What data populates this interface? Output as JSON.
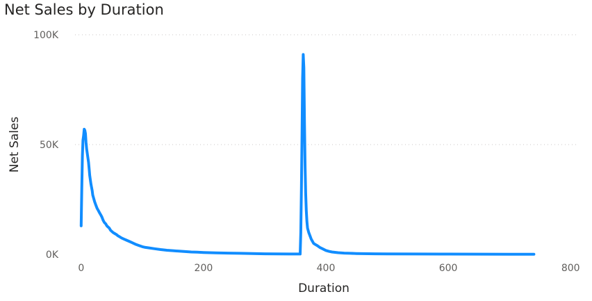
{
  "chart_data": {
    "type": "line",
    "title": "Net Sales by Duration",
    "xlabel": "Duration",
    "ylabel": "Net Sales",
    "xlim": [
      -10,
      810
    ],
    "ylim": [
      0,
      100000
    ],
    "x_ticks": [
      0,
      200,
      400,
      600,
      800
    ],
    "x_tick_labels": [
      "0",
      "200",
      "400",
      "600",
      "800"
    ],
    "y_ticks": [
      0,
      50000,
      100000
    ],
    "y_tick_labels": [
      "0K",
      "50K",
      "100K"
    ],
    "grid": true,
    "legend": "none",
    "series_color": "#118DFF",
    "series": [
      {
        "x": [
          0,
          1,
          2,
          3,
          4,
          5,
          6,
          7,
          8,
          9,
          10,
          11,
          12,
          13,
          14,
          15,
          16,
          17,
          18,
          19,
          20,
          22,
          24,
          26,
          28,
          30,
          32,
          34,
          36,
          38,
          40,
          42,
          44,
          46,
          48,
          50,
          52,
          55,
          58,
          60,
          63,
          66,
          70,
          74,
          78,
          82,
          86,
          90,
          95,
          100,
          105,
          110,
          120,
          130,
          140,
          150,
          160,
          170,
          180,
          190,
          200,
          220,
          240,
          260,
          280,
          300,
          320,
          340,
          358,
          359,
          360,
          361,
          362,
          363,
          364,
          365,
          366,
          367,
          368,
          369,
          370,
          372,
          374,
          376,
          378,
          380,
          383,
          386,
          390,
          395,
          400,
          405,
          410,
          420,
          430,
          440,
          450,
          460,
          480,
          500,
          550,
          600,
          650,
          700,
          740
        ],
        "y": [
          13000,
          30000,
          45000,
          52000,
          54000,
          57000,
          56500,
          55000,
          51000,
          48000,
          46000,
          44000,
          42000,
          39000,
          36000,
          34000,
          32000,
          30500,
          29000,
          27000,
          26000,
          24000,
          22500,
          21000,
          20000,
          19000,
          18000,
          17000,
          15500,
          14500,
          14000,
          13000,
          12500,
          12000,
          11000,
          10500,
          10000,
          9500,
          9000,
          8500,
          8000,
          7500,
          7000,
          6500,
          6000,
          5500,
          5000,
          4500,
          4000,
          3500,
          3200,
          3000,
          2600,
          2200,
          1900,
          1700,
          1500,
          1300,
          1100,
          1000,
          900,
          700,
          600,
          500,
          400,
          300,
          250,
          200,
          200,
          10000,
          30000,
          55000,
          80000,
          91000,
          85000,
          60000,
          40000,
          28000,
          20000,
          15000,
          12000,
          10000,
          8500,
          7000,
          6000,
          5000,
          4500,
          4000,
          3200,
          2500,
          1800,
          1400,
          1100,
          800,
          600,
          500,
          400,
          350,
          300,
          250,
          200,
          150,
          120,
          100,
          100
        ]
      }
    ]
  }
}
